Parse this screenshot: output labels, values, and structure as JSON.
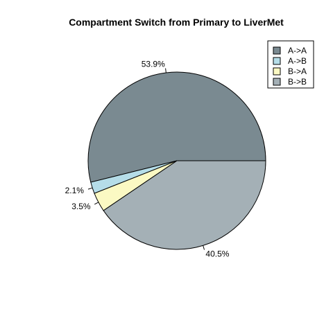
{
  "chart_data": {
    "type": "pie",
    "title": "Compartment Switch from Primary to LiverMet",
    "categories": [
      "A->A",
      "A->B",
      "B->A",
      "B->B"
    ],
    "values": [
      53.9,
      2.1,
      3.5,
      40.5
    ],
    "labels": [
      "53.9%",
      "2.1%",
      "3.5%",
      "40.5%"
    ],
    "colors": [
      "#7a8a91",
      "#b5dde8",
      "#fbf9c3",
      "#a4b0b6"
    ],
    "start_angle_deg": 0,
    "direction": "counterclockwise",
    "legend": {
      "position": "top-right",
      "entries": [
        "A->A",
        "A->B",
        "B->A",
        "B->B"
      ]
    }
  }
}
